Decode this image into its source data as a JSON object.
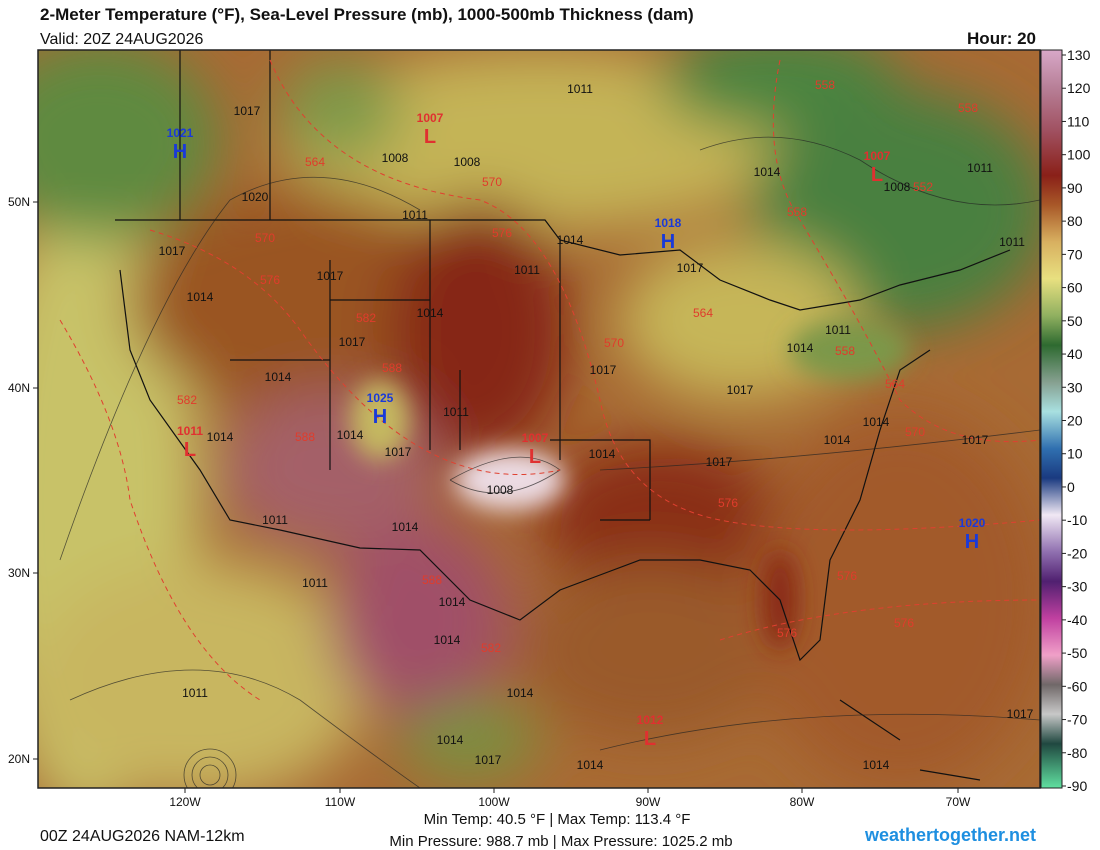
{
  "header": {
    "title": "2-Meter Temperature (°F), Sea-Level Pressure (mb), 1000-500mb Thickness (dam)",
    "valid": "Valid: 20Z 24AUG2026",
    "hour": "Hour: 20"
  },
  "colorbar": {
    "labels": [
      "130",
      "120",
      "110",
      "100",
      "90",
      "80",
      "70",
      "60",
      "50",
      "40",
      "30",
      "20",
      "10",
      "0",
      "-10",
      "-20",
      "-30",
      "-40",
      "-50",
      "-60",
      "-70",
      "-80",
      "-90"
    ]
  },
  "latitude_labels": [
    "50N",
    "40N",
    "30N",
    "20N"
  ],
  "longitude_labels": [
    "120W",
    "110W",
    "100W",
    "90W",
    "80W",
    "70W"
  ],
  "pressure_centers": [
    {
      "symbol": "H",
      "value": "1021"
    },
    {
      "symbol": "L",
      "value": "1007"
    },
    {
      "symbol": "H",
      "value": "1018"
    },
    {
      "symbol": "H",
      "value": "1025"
    },
    {
      "symbol": "L",
      "value": "1007"
    },
    {
      "symbol": "L",
      "value": "1011"
    },
    {
      "symbol": "L",
      "value": "1007"
    },
    {
      "symbol": "H",
      "value": "1020"
    },
    {
      "symbol": "L",
      "value": "1012"
    }
  ],
  "isobar_labels": [
    "1017",
    "1011",
    "1008",
    "1008",
    "1020",
    "1011",
    "1017",
    "1014",
    "1011",
    "1017",
    "1014",
    "1014",
    "1017",
    "1014",
    "1011",
    "1014",
    "1014",
    "1017",
    "1014",
    "1017",
    "1017",
    "1017",
    "1008",
    "1011",
    "1014",
    "1011",
    "1014",
    "1014",
    "1014",
    "1011",
    "1014",
    "1017",
    "1014",
    "1014",
    "1017",
    "1017",
    "1017",
    "1014",
    "1011",
    "1011",
    "1011",
    "1014",
    "1014",
    "1014",
    "1008"
  ],
  "thickness_labels": [
    "564",
    "570",
    "576",
    "570",
    "576",
    "582",
    "588",
    "582",
    "588",
    "570",
    "564",
    "558",
    "564",
    "570",
    "576",
    "558",
    "558",
    "558",
    "552",
    "576",
    "576",
    "576",
    "588",
    "582"
  ],
  "footer": {
    "min_max_temp": "Min Temp:  40.5 °F | Max Temp: 113.4 °F",
    "min_max_pressure": "Min Pressure: 988.7 mb | Max Pressure: 1025.2 mb",
    "model": "00Z 24AUG2026 NAM-12km",
    "site": "weathertogether.net"
  }
}
